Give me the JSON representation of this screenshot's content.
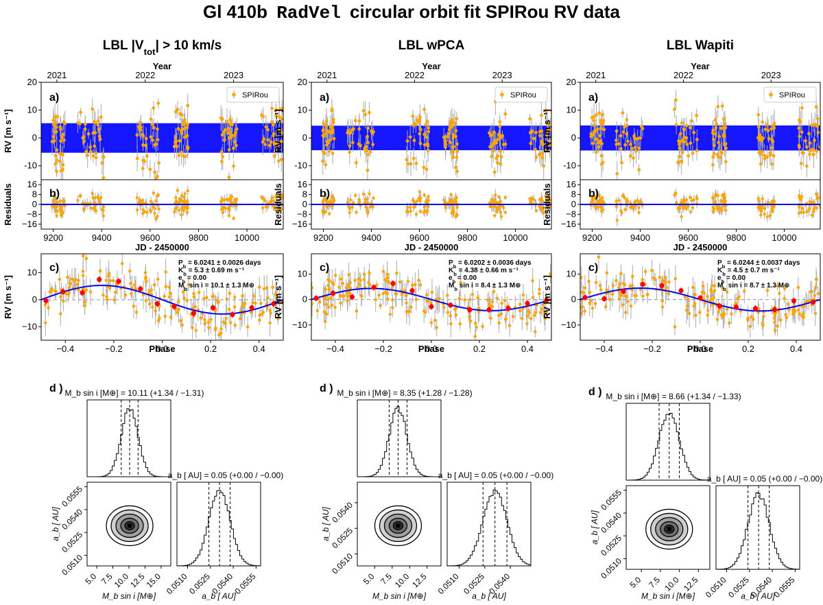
{
  "figure": {
    "title_prefix": "Gl 410b",
    "title_code": "RadVel",
    "title_suffix": "circular orbit fit SPIRou RV data",
    "colors": {
      "data": "#ffa500",
      "model": "#0000ff",
      "errorbar": "#a9a9a9",
      "binned": "#ff0000",
      "zero": "#999999"
    }
  },
  "labels": {
    "year": "Year",
    "jd": "JD - 2450000",
    "phase": "Phase",
    "rv": "RV [m s⁻¹]",
    "residuals": "Residuals",
    "legend": "SPIRou",
    "panel_a": "a)",
    "panel_b": "b)",
    "panel_c": "c)",
    "panel_d": "d )",
    "mass_axis": "M_b sin i [M⊕]",
    "a_axis": "a_b [ AU]"
  },
  "chart_data": [
    {
      "type": "scatter",
      "title": "LBL |V_tot| > 10 km/s",
      "title_parts": {
        "pre": "LBL |V",
        "sub": "tot",
        "post": "| > 10 km/s"
      },
      "time_series": {
        "xlabel": "JD - 2450000",
        "xlim": [
          9150,
          10150
        ],
        "ylim": [
          -15,
          20
        ],
        "xticks": [
          9200,
          9400,
          9600,
          9800,
          10000
        ],
        "yticks": [
          -10,
          0,
          10,
          20
        ],
        "year_ticks": [
          "2021",
          "2022",
          "2023"
        ],
        "model_amplitude": 5.3,
        "legend": "SPIRou"
      },
      "residuals": {
        "ylim": [
          -20,
          20
        ],
        "yticks": [
          -16,
          -8,
          0,
          8,
          16
        ]
      },
      "phase": {
        "xlim": [
          -0.5,
          0.5
        ],
        "ylim": [
          -15,
          17
        ],
        "xticks": [
          -0.4,
          -0.2,
          0.0,
          0.2,
          0.4
        ],
        "yticks": [
          -10,
          0,
          10
        ],
        "model_amplitude": 5.3,
        "binned": [
          [
            -0.48,
            -0.4
          ],
          [
            -0.41,
            3.0
          ],
          [
            -0.33,
            2.6
          ],
          [
            -0.26,
            7.5
          ],
          [
            -0.18,
            6.8
          ],
          [
            -0.09,
            4.0
          ],
          [
            -0.02,
            -1.5
          ],
          [
            0.05,
            -2.5
          ],
          [
            0.13,
            -5.0
          ],
          [
            0.21,
            -3.0
          ],
          [
            0.29,
            -5.5
          ],
          [
            0.37,
            -3.0
          ],
          [
            0.46,
            -1.5
          ]
        ]
      },
      "stats": [
        "P_b = 6.0241 ± 0.0026 days",
        "K_b = 5.3 ± 0.69 m s⁻¹",
        "e_b = 0.00",
        "M_b sin i = 10.1 ± 1.3 M⊕"
      ],
      "corner": {
        "mass_title": "M_b sin i [M⊕] = 10.11 (+1.34 / −1.31)",
        "a_title": "a_b [ AU] = 0.05 (+0.00 / −0.00)",
        "mass": {
          "median": 10.11,
          "lo": 1.31,
          "hi": 1.34,
          "xlim": [
            3.5,
            16.5
          ],
          "xticks": [
            "5.0",
            "7.5",
            "10.0",
            "12.5",
            "15.0"
          ]
        },
        "a": {
          "median": 0.0531,
          "lo": 0.0007,
          "hi": 0.0007,
          "xlim": [
            0.0503,
            0.0558
          ],
          "xticks": [
            "0.0510",
            "0.0525",
            "0.0540",
            "0.0555"
          ],
          "yticks": [
            "0.0510",
            "0.0525",
            "0.0540",
            "0.0555"
          ]
        }
      }
    },
    {
      "type": "scatter",
      "title": "LBL wPCA",
      "title_parts": {
        "pre": "LBL wPCA",
        "sub": "",
        "post": ""
      },
      "time_series": {
        "xlabel": "JD - 2450000",
        "xlim": [
          9150,
          10150
        ],
        "ylim": [
          -15,
          20
        ],
        "xticks": [
          9200,
          9400,
          9600,
          9800,
          10000
        ],
        "yticks": [
          -10,
          0,
          10,
          20
        ],
        "year_ticks": [
          "2021",
          "2022",
          "2023"
        ],
        "model_amplitude": 4.4,
        "legend": "SPIRou"
      },
      "residuals": {
        "ylim": [
          -20,
          20
        ],
        "yticks": [
          -16,
          -8,
          0,
          8,
          16
        ]
      },
      "phase": {
        "xlim": [
          -0.5,
          0.5
        ],
        "ylim": [
          -16,
          18
        ],
        "xticks": [
          -0.4,
          -0.2,
          0.0,
          0.2,
          0.4
        ],
        "yticks": [
          -10,
          0,
          10
        ],
        "model_amplitude": 4.38,
        "binned": [
          [
            -0.48,
            0.5
          ],
          [
            -0.41,
            2.5
          ],
          [
            -0.33,
            1.0
          ],
          [
            -0.24,
            4.8
          ],
          [
            -0.16,
            6.3
          ],
          [
            -0.08,
            3.5
          ],
          [
            0.0,
            -2.8
          ],
          [
            0.08,
            -2.2
          ],
          [
            0.16,
            -4.0
          ],
          [
            0.24,
            -4.0
          ],
          [
            0.32,
            -3.5
          ],
          [
            0.4,
            -1.5
          ],
          [
            0.48,
            -0.3
          ]
        ]
      },
      "stats": [
        "P_b = 6.0202 ± 0.0036 days",
        "K_b = 4.38 ± 0.66 m s⁻¹",
        "e_b = 0.00",
        "M_b sin i = 8.4 ± 1.3 M⊕"
      ],
      "corner": {
        "mass_title": "M_b sin i [M⊕] = 8.35 (+1.28 / −1.28)",
        "a_title": "a_b [ AU] = 0.05 (+0.00 / −0.00)",
        "mass": {
          "median": 8.35,
          "lo": 1.28,
          "hi": 1.28,
          "xlim": [
            2.5,
            14.5
          ],
          "xticks": [
            "5.0",
            "7.5",
            "10.0",
            "12.5"
          ]
        },
        "a": {
          "median": 0.0531,
          "lo": 0.0007,
          "hi": 0.0007,
          "xlim": [
            0.0503,
            0.0552
          ],
          "xticks": [
            "0.0510",
            "0.0525",
            "0.0540"
          ],
          "yticks": [
            "0.0510",
            "0.0525",
            "0.0540"
          ]
        }
      }
    },
    {
      "type": "scatter",
      "title": "LBL Wapiti",
      "title_parts": {
        "pre": "LBL Wapiti",
        "sub": "",
        "post": ""
      },
      "time_series": {
        "xlabel": "JD - 2450000",
        "xlim": [
          9150,
          10150
        ],
        "ylim": [
          -15,
          20
        ],
        "xticks": [
          9200,
          9400,
          9600,
          9800,
          10000
        ],
        "yticks": [
          -10,
          0,
          10,
          20
        ],
        "year_ticks": [
          "2021",
          "2022",
          "2023"
        ],
        "model_amplitude": 4.5,
        "legend": "SPIRou"
      },
      "residuals": {
        "ylim": [
          -20,
          20
        ],
        "yticks": [
          -16,
          -8,
          0,
          8,
          16
        ]
      },
      "phase": {
        "xlim": [
          -0.5,
          0.5
        ],
        "ylim": [
          -16,
          18
        ],
        "xticks": [
          -0.4,
          -0.2,
          0.0,
          0.2,
          0.4
        ],
        "yticks": [
          -10,
          0,
          10
        ],
        "model_amplitude": 4.5,
        "binned": [
          [
            -0.48,
            0.8
          ],
          [
            -0.4,
            0.3
          ],
          [
            -0.32,
            3.2
          ],
          [
            -0.24,
            6.0
          ],
          [
            -0.16,
            5.5
          ],
          [
            -0.08,
            3.5
          ],
          [
            0.0,
            0.6
          ],
          [
            0.08,
            -2.5
          ],
          [
            0.15,
            -3.0
          ],
          [
            0.23,
            -3.5
          ],
          [
            0.31,
            -4.0
          ],
          [
            0.39,
            -0.5
          ],
          [
            0.47,
            -1.0
          ]
        ]
      },
      "stats": [
        "P_b = 6.0244 ± 0.0037 days",
        "K_b = 4.5 ± 0.7 m s⁻¹",
        "e_b = 0.00",
        "M_b sin i = 8.7 ± 1.3 M⊕"
      ],
      "corner": {
        "mass_title": "M_b sin i [M⊕] = 8.66 (+1.34 / −1.33)",
        "a_title": "a_b [ AU] = 0.05 (+0.00 / −0.00)",
        "mass": {
          "median": 8.66,
          "lo": 1.33,
          "hi": 1.34,
          "xlim": [
            3.0,
            14.0
          ],
          "xticks": [
            "5.0",
            "7.5",
            "10.0",
            "12.5"
          ]
        },
        "a": {
          "median": 0.0531,
          "lo": 0.0007,
          "hi": 0.0007,
          "xlim": [
            0.0503,
            0.0558
          ],
          "xticks": [
            "0.0510",
            "0.0525",
            "0.0540",
            "0.0555"
          ],
          "yticks": [
            "0.0510",
            "0.0525",
            "0.0540",
            "0.0555"
          ]
        }
      }
    }
  ]
}
